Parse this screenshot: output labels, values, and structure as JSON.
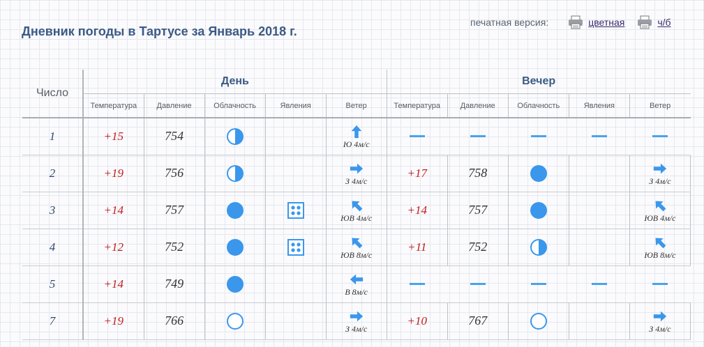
{
  "title": "Дневник погоды в Тартусе за Январь 2018 г.",
  "print": {
    "label": "печатная версия:",
    "color": "цветная",
    "bw": "ч/б"
  },
  "table": {
    "col_chislo": "Число",
    "groups": {
      "day": "День",
      "evening": "Вечер"
    },
    "cols": {
      "temp": "Температура",
      "pressure": "Давление",
      "clouds": "Облачность",
      "phenomena": "Явления",
      "wind": "Ветер"
    }
  },
  "rows": [
    {
      "num": "1",
      "day": {
        "temp": "+15",
        "pressure": "754",
        "clouds": "partly",
        "phen": "",
        "wind_dir": "N",
        "wind": "Ю 4м/с"
      },
      "eve": null
    },
    {
      "num": "2",
      "day": {
        "temp": "+19",
        "pressure": "756",
        "clouds": "partly",
        "phen": "",
        "wind_dir": "E",
        "wind": "З 4м/с"
      },
      "eve": {
        "temp": "+17",
        "pressure": "758",
        "clouds": "overcast",
        "phen": "",
        "wind_dir": "E",
        "wind": "З 4м/с"
      }
    },
    {
      "num": "3",
      "day": {
        "temp": "+14",
        "pressure": "757",
        "clouds": "overcast",
        "phen": "dots",
        "wind_dir": "NW",
        "wind": "ЮВ 4м/с"
      },
      "eve": {
        "temp": "+14",
        "pressure": "757",
        "clouds": "overcast",
        "phen": "",
        "wind_dir": "NW",
        "wind": "ЮВ 4м/с"
      }
    },
    {
      "num": "4",
      "day": {
        "temp": "+12",
        "pressure": "752",
        "clouds": "overcast",
        "phen": "dots",
        "wind_dir": "NW",
        "wind": "ЮВ 8м/с"
      },
      "eve": {
        "temp": "+11",
        "pressure": "752",
        "clouds": "partly",
        "phen": "",
        "wind_dir": "NW",
        "wind": "ЮВ 8м/с"
      }
    },
    {
      "num": "5",
      "day": {
        "temp": "+14",
        "pressure": "749",
        "clouds": "overcast",
        "phen": "",
        "wind_dir": "W",
        "wind": "В 8м/с"
      },
      "eve": null
    },
    {
      "num": "7",
      "day": {
        "temp": "+19",
        "pressure": "766",
        "clouds": "clear",
        "phen": "",
        "wind_dir": "E",
        "wind": "З 4м/с"
      },
      "eve": {
        "temp": "+10",
        "pressure": "767",
        "clouds": "clear",
        "phen": "",
        "wind_dir": "E",
        "wind": "З 4м/с"
      }
    }
  ],
  "colors": {
    "accent": "#3b5a85",
    "icon": "#3a97ec",
    "temp": "#c21c1c",
    "dash": "#4aa3ea"
  }
}
